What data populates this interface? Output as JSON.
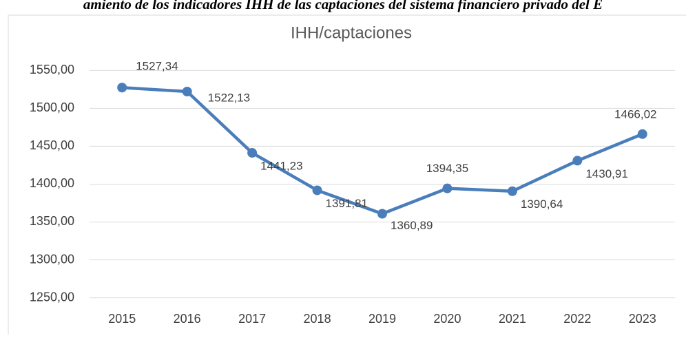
{
  "caption": "amiento de los indicadores IHH de las captaciones del sistema financiero privado del E",
  "chart_data": {
    "type": "line",
    "title": "IHH/captaciones",
    "categories": [
      "2015",
      "2016",
      "2017",
      "2018",
      "2019",
      "2020",
      "2021",
      "2022",
      "2023"
    ],
    "series": [
      {
        "name": "IHH/captaciones",
        "color": "#4a7ebb",
        "values": [
          1527.34,
          1522.13,
          1441.23,
          1391.81,
          1360.89,
          1394.35,
          1390.64,
          1430.91,
          1466.02
        ],
        "value_labels": [
          "1527,34",
          "1522,13",
          "1441,23",
          "1391,81",
          "1360,89",
          "1394,35",
          "1390,64",
          "1430,91",
          "1466,02"
        ]
      }
    ],
    "ylim": [
      1236,
      1563
    ],
    "yticks": [
      {
        "value": 1250,
        "label": "1250,00"
      },
      {
        "value": 1300,
        "label": "1300,00"
      },
      {
        "value": 1350,
        "label": "1350,00"
      },
      {
        "value": 1400,
        "label": "1400,00"
      },
      {
        "value": 1450,
        "label": "1450,00"
      },
      {
        "value": 1500,
        "label": "1500,00"
      },
      {
        "value": 1550,
        "label": "1550,00"
      }
    ],
    "grid": true
  }
}
